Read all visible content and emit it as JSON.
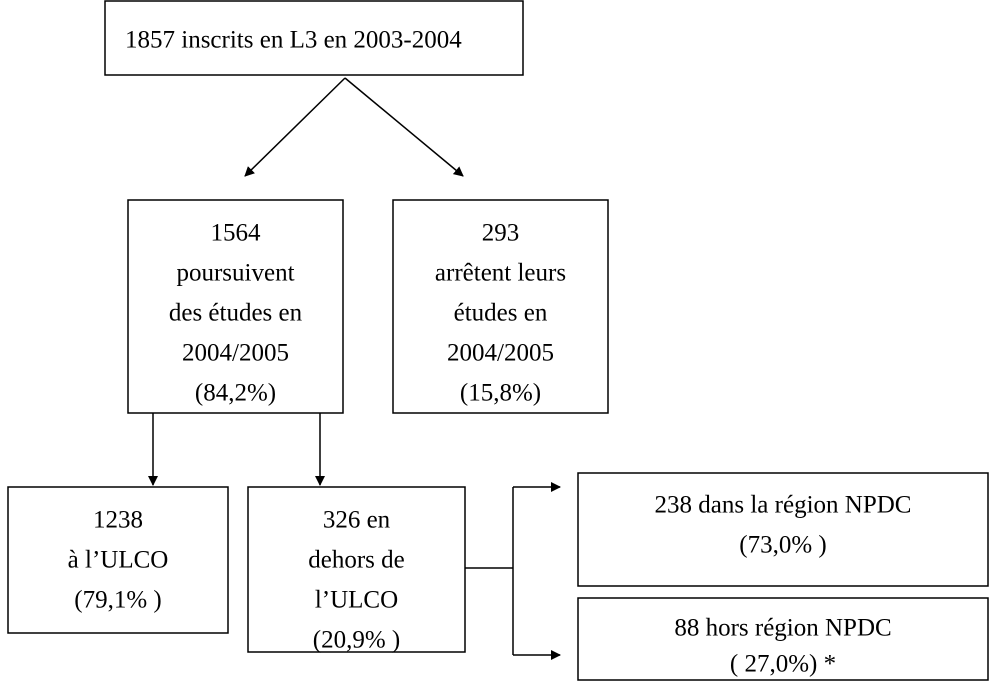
{
  "nodes": [
    {
      "lines": [
        "1857 inscrits en L3 en 2003-2004"
      ]
    },
    {
      "lines": [
        "1564",
        "poursuivent",
        "des études en",
        "2004/2005",
        "(84,2%)"
      ]
    },
    {
      "lines": [
        "293",
        "arrêtent leurs",
        "études en",
        "2004/2005",
        "(15,8%)"
      ]
    },
    {
      "lines": [
        "1238",
        "à l’ULCO",
        "(79,1% )"
      ]
    },
    {
      "lines": [
        "326 en",
        "dehors de",
        "l’ULCO",
        "(20,9% )"
      ]
    },
    {
      "lines": [
        "238 dans la région NPDC",
        "(73,0% )"
      ]
    },
    {
      "lines": [
        "88 hors région NPDC",
        "( 27,0%) *"
      ]
    }
  ]
}
